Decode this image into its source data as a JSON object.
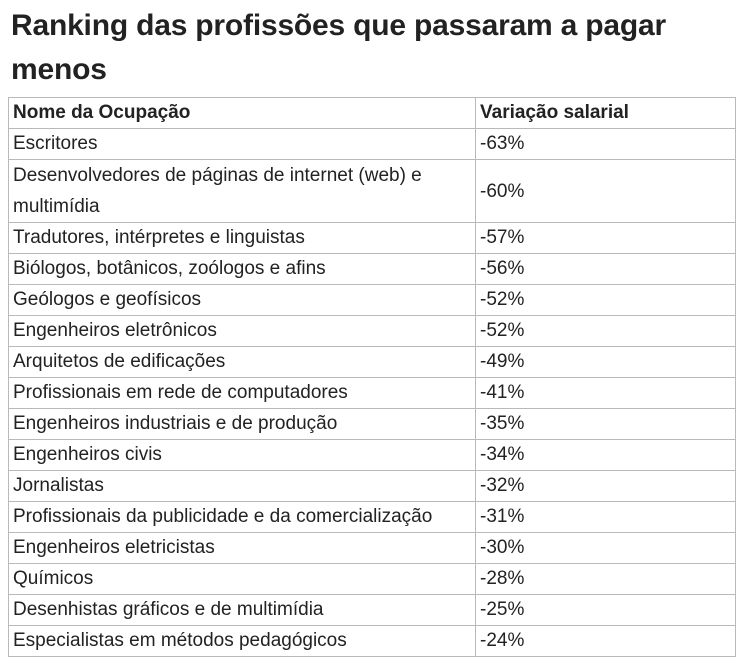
{
  "heading": "Ranking das profissões que passaram a pagar menos",
  "table": {
    "columns": [
      "Nome da Ocupação",
      "Variação salarial"
    ],
    "rows": [
      {
        "ocupacao": "Escritores",
        "variacao": "-63%"
      },
      {
        "ocupacao": "Desenvolvedores de páginas de internet (web) e multimídia",
        "variacao": "-60%"
      },
      {
        "ocupacao": "Tradutores, intérpretes e linguistas",
        "variacao": "-57%"
      },
      {
        "ocupacao": "Biólogos, botânicos, zoólogos e afins",
        "variacao": "-56%"
      },
      {
        "ocupacao": "Geólogos e geofísicos",
        "variacao": "-52%"
      },
      {
        "ocupacao": "Engenheiros eletrônicos",
        "variacao": "-52%"
      },
      {
        "ocupacao": "Arquitetos de edificações",
        "variacao": "-49%"
      },
      {
        "ocupacao": "Profissionais em rede de computadores",
        "variacao": "-41%"
      },
      {
        "ocupacao": "Engenheiros industriais e de produção",
        "variacao": "-35%"
      },
      {
        "ocupacao": "Engenheiros civis",
        "variacao": "-34%"
      },
      {
        "ocupacao": "Jornalistas",
        "variacao": "-32%"
      },
      {
        "ocupacao": "Profissionais da publicidade e da comercialização",
        "variacao": "-31%"
      },
      {
        "ocupacao": "Engenheiros eletricistas",
        "variacao": "-30%"
      },
      {
        "ocupacao": "Químicos",
        "variacao": "-28%"
      },
      {
        "ocupacao": "Desenhistas gráficos e de multimídia",
        "variacao": "-25%"
      },
      {
        "ocupacao": "Especialistas em métodos pedagógicos",
        "variacao": "-24%"
      }
    ]
  }
}
